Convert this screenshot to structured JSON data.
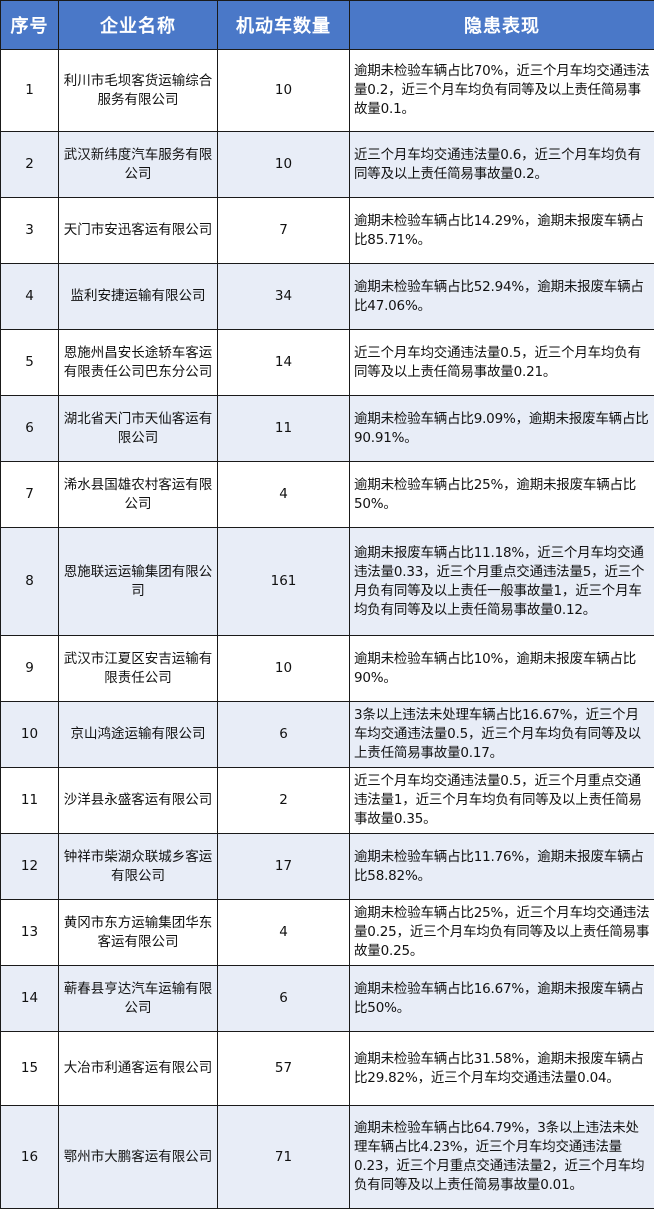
{
  "header": {
    "index": "序号",
    "company": "企业名称",
    "vehicles": "机动车数量",
    "hazards": "隐患表现"
  },
  "colors": {
    "header_bg": "#4a78c8",
    "alt_row_bg": "#e8edf7"
  },
  "rows": [
    {
      "index": "1",
      "company": "利川市毛坝客货运输综合服务有限公司",
      "vehicles": "10",
      "hazards": "逾期未检验车辆占比70%，近三个月车均交通违法量0.2，近三个月车均负有同等及以上责任简易事故量0.1。"
    },
    {
      "index": "2",
      "company": "武汉新纬度汽车服务有限公司",
      "vehicles": "10",
      "hazards": "近三个月车均交通违法量0.6，近三个月车均负有同等及以上责任简易事故量0.2。"
    },
    {
      "index": "3",
      "company": "天门市安迅客运有限公司",
      "vehicles": "7",
      "hazards": "逾期未检验车辆占比14.29%，逾期未报废车辆占比85.71%。"
    },
    {
      "index": "4",
      "company": "监利安捷运输有限公司",
      "vehicles": "34",
      "hazards": "逾期未检验车辆占比52.94%，逾期未报废车辆占比47.06%。"
    },
    {
      "index": "5",
      "company": "恩施州昌安长途轿车客运有限责任公司巴东分公司",
      "vehicles": "14",
      "hazards": "近三个月车均交通违法量0.5，近三个月车均负有同等及以上责任简易事故量0.21。"
    },
    {
      "index": "6",
      "company": "湖北省天门市天仙客运有限公司",
      "vehicles": "11",
      "hazards": "逾期未检验车辆占比9.09%，逾期未报废车辆占比90.91%。"
    },
    {
      "index": "7",
      "company": "浠水县国雄农村客运有限公司",
      "vehicles": "4",
      "hazards": "逾期未检验车辆占比25%，逾期未报废车辆占比50%。"
    },
    {
      "index": "8",
      "company": "恩施联运运输集团有限公司",
      "vehicles": "161",
      "hazards": "逾期未报废车辆占比11.18%，近三个月车均交通违法量0.33，近三个月重点交通违法量5，近三个月负有同等及以上责任一般事故量1，近三个月车均负有同等及以上责任简易事故量0.12。"
    },
    {
      "index": "9",
      "company": "武汉市江夏区安吉运输有限责任公司",
      "vehicles": "10",
      "hazards": "逾期未检验车辆占比10%，逾期未报废车辆占比90%。"
    },
    {
      "index": "10",
      "company": "京山鸿途运输有限公司",
      "vehicles": "6",
      "hazards": "3条以上违法未处理车辆占比16.67%，近三个月车均交通违法量0.5，近三个月车均负有同等及以上责任简易事故量0.17。"
    },
    {
      "index": "11",
      "company": "沙洋县永盛客运有限公司",
      "vehicles": "2",
      "hazards": "近三个月车均交通违法量0.5，近三个月重点交通违法量1，近三个月车均负有同等及以上责任简易事故量0.35。"
    },
    {
      "index": "12",
      "company": "钟祥市柴湖众联城乡客运有限公司",
      "vehicles": "17",
      "hazards": "逾期未检验车辆占比11.76%，逾期未报废车辆占比58.82%。"
    },
    {
      "index": "13",
      "company": "黄冈市东方运输集团华东客运有限公司",
      "vehicles": "4",
      "hazards": "逾期未检验车辆占比25%，近三个月车均交通违法量0.25，近三个月车均负有同等及以上责任简易事故量0.25。"
    },
    {
      "index": "14",
      "company": "蕲春县亨达汽车运输有限公司",
      "vehicles": "6",
      "hazards": "逾期未检验车辆占比16.67%，逾期未报废车辆占比50%。"
    },
    {
      "index": "15",
      "company": "大冶市利通客运有限公司",
      "vehicles": "57",
      "hazards": "逾期未检验车辆占比31.58%，逾期未报废车辆占比29.82%，近三个月车均交通违法量0.04。"
    },
    {
      "index": "16",
      "company": "鄂州市大鹏客运有限公司",
      "vehicles": "71",
      "hazards": "逾期未检验车辆占比64.79%，3条以上违法未处理车辆占比4.23%，近三个月车均交通违法量0.23，近三个月重点交通违法量2，近三个月车均负有同等及以上责任简易事故量0.01。"
    }
  ]
}
